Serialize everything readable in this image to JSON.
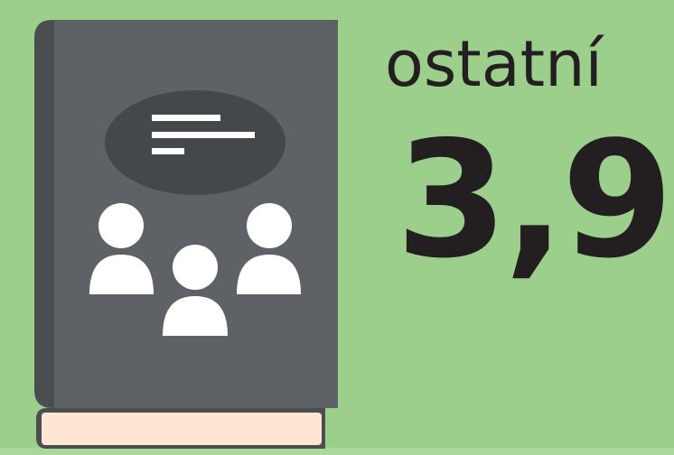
{
  "label": "ostatní",
  "value": "3,9"
}
